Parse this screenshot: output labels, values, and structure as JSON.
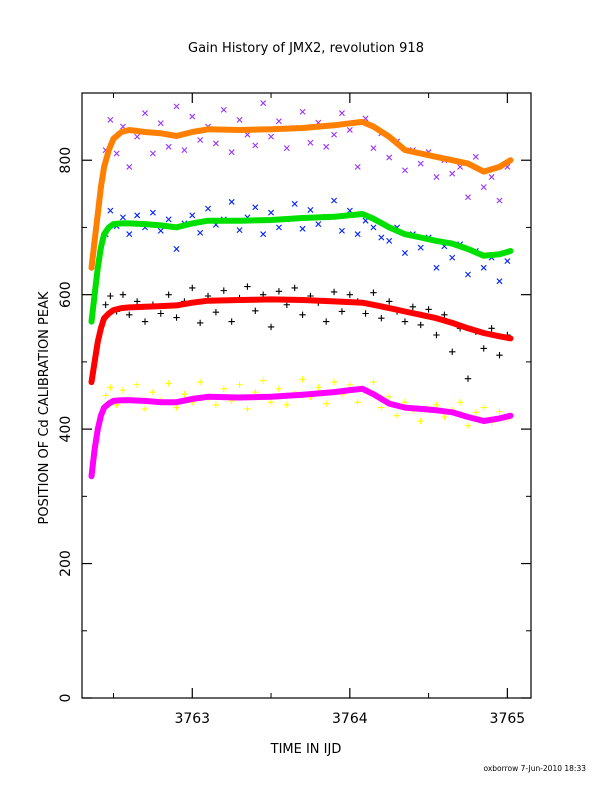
{
  "chart_data": {
    "type": "scatter",
    "title": "Gain History of JMX2, revolution 918",
    "xlabel": "TIME IN IJD",
    "ylabel": "POSITION OF Cd CALIBRATION PEAK",
    "xlim": [
      3762.3,
      3765.15
    ],
    "ylim": [
      0,
      900
    ],
    "xticks": [
      3763,
      3764,
      3765
    ],
    "yticks": [
      0,
      200,
      400,
      600,
      800
    ],
    "xtick_labels": [
      "3763",
      "3764",
      "3765"
    ],
    "ytick_labels": [
      "0",
      "200",
      "400",
      "600",
      "800"
    ],
    "grid": false,
    "legend": "none",
    "footer": "oxborrow  7-Jun-2010 18:33",
    "series": [
      {
        "role": "fit",
        "color": "#ff8000",
        "x": [
          3762.36,
          3762.38,
          3762.4,
          3762.42,
          3762.44,
          3762.47,
          3762.5,
          3762.55,
          3762.6,
          3762.7,
          3762.8,
          3762.9,
          3763.0,
          3763.1,
          3763.3,
          3763.5,
          3763.7,
          3763.9,
          3764.0,
          3764.08,
          3764.15,
          3764.25,
          3764.35,
          3764.45,
          3764.55,
          3764.65,
          3764.75,
          3764.85,
          3764.95,
          3765.02
        ],
        "y": [
          640,
          680,
          720,
          760,
          790,
          815,
          832,
          842,
          845,
          842,
          840,
          836,
          842,
          846,
          845,
          846,
          848,
          852,
          855,
          857,
          850,
          835,
          815,
          810,
          805,
          800,
          795,
          783,
          790,
          800
        ]
      },
      {
        "role": "fit",
        "color": "#00e000",
        "x": [
          3762.36,
          3762.38,
          3762.4,
          3762.42,
          3762.44,
          3762.47,
          3762.5,
          3762.55,
          3762.6,
          3762.7,
          3762.8,
          3762.9,
          3763.0,
          3763.1,
          3763.3,
          3763.5,
          3763.7,
          3763.9,
          3764.0,
          3764.08,
          3764.15,
          3764.25,
          3764.35,
          3764.45,
          3764.55,
          3764.65,
          3764.75,
          3764.85,
          3764.95,
          3765.02
        ],
        "y": [
          560,
          600,
          640,
          670,
          690,
          700,
          705,
          706,
          706,
          705,
          703,
          700,
          706,
          710,
          710,
          711,
          714,
          716,
          718,
          720,
          713,
          700,
          690,
          685,
          680,
          676,
          668,
          658,
          660,
          665
        ]
      },
      {
        "role": "fit",
        "color": "#ff0000",
        "x": [
          3762.36,
          3762.38,
          3762.4,
          3762.42,
          3762.44,
          3762.47,
          3762.5,
          3762.55,
          3762.6,
          3762.7,
          3762.8,
          3762.9,
          3763.0,
          3763.1,
          3763.3,
          3763.5,
          3763.7,
          3763.9,
          3764.0,
          3764.08,
          3764.15,
          3764.25,
          3764.35,
          3764.45,
          3764.55,
          3764.65,
          3764.75,
          3764.85,
          3764.95,
          3765.02
        ],
        "y": [
          470,
          500,
          530,
          550,
          565,
          572,
          577,
          580,
          581,
          582,
          583,
          584,
          588,
          591,
          592,
          593,
          592,
          590,
          589,
          588,
          585,
          580,
          575,
          570,
          565,
          558,
          550,
          543,
          538,
          535
        ]
      },
      {
        "role": "fit",
        "color": "#ff00ff",
        "x": [
          3762.36,
          3762.38,
          3762.4,
          3762.42,
          3762.44,
          3762.47,
          3762.5,
          3762.55,
          3762.6,
          3762.7,
          3762.8,
          3762.9,
          3763.0,
          3763.1,
          3763.3,
          3763.5,
          3763.7,
          3763.9,
          3764.0,
          3764.08,
          3764.15,
          3764.25,
          3764.35,
          3764.45,
          3764.55,
          3764.65,
          3764.75,
          3764.85,
          3764.95,
          3765.02
        ],
        "y": [
          330,
          370,
          400,
          420,
          432,
          438,
          442,
          443,
          443,
          442,
          440,
          440,
          445,
          448,
          447,
          448,
          451,
          455,
          458,
          460,
          452,
          438,
          432,
          430,
          428,
          425,
          418,
          412,
          416,
          420
        ]
      },
      {
        "role": "scatter",
        "marker": "x",
        "color": "#9933ff",
        "x": [
          3762.45,
          3762.48,
          3762.52,
          3762.56,
          3762.6,
          3762.65,
          3762.7,
          3762.75,
          3762.8,
          3762.85,
          3762.9,
          3762.95,
          3763.0,
          3763.05,
          3763.1,
          3763.15,
          3763.2,
          3763.25,
          3763.3,
          3763.35,
          3763.4,
          3763.45,
          3763.5,
          3763.55,
          3763.6,
          3763.65,
          3763.7,
          3763.75,
          3763.8,
          3763.85,
          3763.9,
          3763.95,
          3764.0,
          3764.05,
          3764.1,
          3764.15,
          3764.2,
          3764.25,
          3764.3,
          3764.35,
          3764.4,
          3764.45,
          3764.5,
          3764.55,
          3764.6,
          3764.65,
          3764.7,
          3764.75,
          3764.8,
          3764.85,
          3764.9,
          3764.95,
          3765.0
        ],
        "y": [
          815,
          860,
          810,
          850,
          790,
          835,
          870,
          810,
          855,
          820,
          880,
          815,
          865,
          830,
          850,
          825,
          875,
          812,
          860,
          838,
          822,
          885,
          835,
          858,
          818,
          848,
          872,
          826,
          856,
          820,
          838,
          870,
          845,
          790,
          862,
          818,
          840,
          804,
          828,
          785,
          815,
          795,
          812,
          775,
          800,
          780,
          790,
          745,
          805,
          760,
          775,
          740,
          790
        ]
      },
      {
        "role": "scatter",
        "marker": "x",
        "color": "#0022ff",
        "x": [
          3762.45,
          3762.48,
          3762.52,
          3762.56,
          3762.6,
          3762.65,
          3762.7,
          3762.75,
          3762.8,
          3762.85,
          3762.9,
          3762.95,
          3763.0,
          3763.05,
          3763.1,
          3763.15,
          3763.2,
          3763.25,
          3763.3,
          3763.35,
          3763.4,
          3763.45,
          3763.5,
          3763.55,
          3763.6,
          3763.65,
          3763.7,
          3763.75,
          3763.8,
          3763.85,
          3763.9,
          3763.95,
          3764.0,
          3764.05,
          3764.1,
          3764.15,
          3764.2,
          3764.25,
          3764.3,
          3764.35,
          3764.4,
          3764.45,
          3764.5,
          3764.55,
          3764.6,
          3764.65,
          3764.7,
          3764.75,
          3764.8,
          3764.85,
          3764.9,
          3764.95,
          3765.0
        ],
        "y": [
          690,
          725,
          702,
          715,
          690,
          718,
          700,
          722,
          695,
          712,
          668,
          706,
          718,
          692,
          728,
          704,
          712,
          738,
          696,
          715,
          730,
          690,
          722,
          700,
          712,
          735,
          698,
          726,
          705,
          716,
          740,
          695,
          725,
          690,
          710,
          700,
          685,
          680,
          700,
          662,
          690,
          670,
          685,
          640,
          672,
          655,
          675,
          630,
          665,
          640,
          655,
          620,
          650
        ]
      },
      {
        "role": "scatter",
        "marker": "+",
        "color": "#000000",
        "x": [
          3762.45,
          3762.48,
          3762.52,
          3762.56,
          3762.6,
          3762.65,
          3762.7,
          3762.75,
          3762.8,
          3762.85,
          3762.9,
          3762.95,
          3763.0,
          3763.05,
          3763.1,
          3763.15,
          3763.2,
          3763.25,
          3763.3,
          3763.35,
          3763.4,
          3763.45,
          3763.5,
          3763.55,
          3763.6,
          3763.65,
          3763.7,
          3763.75,
          3763.8,
          3763.85,
          3763.9,
          3763.95,
          3764.0,
          3764.05,
          3764.1,
          3764.15,
          3764.2,
          3764.25,
          3764.3,
          3764.35,
          3764.4,
          3764.45,
          3764.5,
          3764.55,
          3764.6,
          3764.65,
          3764.7,
          3764.75,
          3764.8,
          3764.85,
          3764.9,
          3764.95,
          3765.0
        ],
        "y": [
          585,
          598,
          575,
          600,
          570,
          590,
          560,
          585,
          572,
          600,
          566,
          590,
          610,
          558,
          598,
          574,
          606,
          560,
          595,
          612,
          576,
          600,
          552,
          605,
          585,
          610,
          570,
          598,
          588,
          560,
          604,
          575,
          600,
          590,
          572,
          603,
          565,
          590,
          575,
          560,
          582,
          555,
          578,
          540,
          570,
          515,
          550,
          475,
          545,
          520,
          550,
          510,
          540
        ]
      },
      {
        "role": "scatter",
        "marker": "+",
        "color": "#ffff00",
        "x": [
          3762.45,
          3762.48,
          3762.52,
          3762.56,
          3762.6,
          3762.65,
          3762.7,
          3762.75,
          3762.8,
          3762.85,
          3762.9,
          3762.95,
          3763.0,
          3763.05,
          3763.1,
          3763.15,
          3763.2,
          3763.25,
          3763.3,
          3763.35,
          3763.4,
          3763.45,
          3763.5,
          3763.55,
          3763.6,
          3763.65,
          3763.7,
          3763.75,
          3763.8,
          3763.85,
          3763.9,
          3763.95,
          3764.0,
          3764.05,
          3764.1,
          3764.15,
          3764.2,
          3764.25,
          3764.3,
          3764.35,
          3764.4,
          3764.45,
          3764.5,
          3764.55,
          3764.6,
          3764.65,
          3764.7,
          3764.75,
          3764.8,
          3764.85,
          3764.9,
          3764.95,
          3765.0
        ],
        "y": [
          450,
          462,
          436,
          458,
          444,
          466,
          430,
          455,
          442,
          468,
          432,
          452,
          440,
          470,
          446,
          436,
          460,
          442,
          466,
          430,
          455,
          472,
          440,
          460,
          436,
          452,
          474,
          448,
          462,
          438,
          470,
          452,
          466,
          440,
          458,
          470,
          432,
          448,
          420,
          440,
          428,
          412,
          430,
          436,
          418,
          428,
          440,
          405,
          425,
          432,
          410,
          426,
          415
        ]
      }
    ]
  }
}
